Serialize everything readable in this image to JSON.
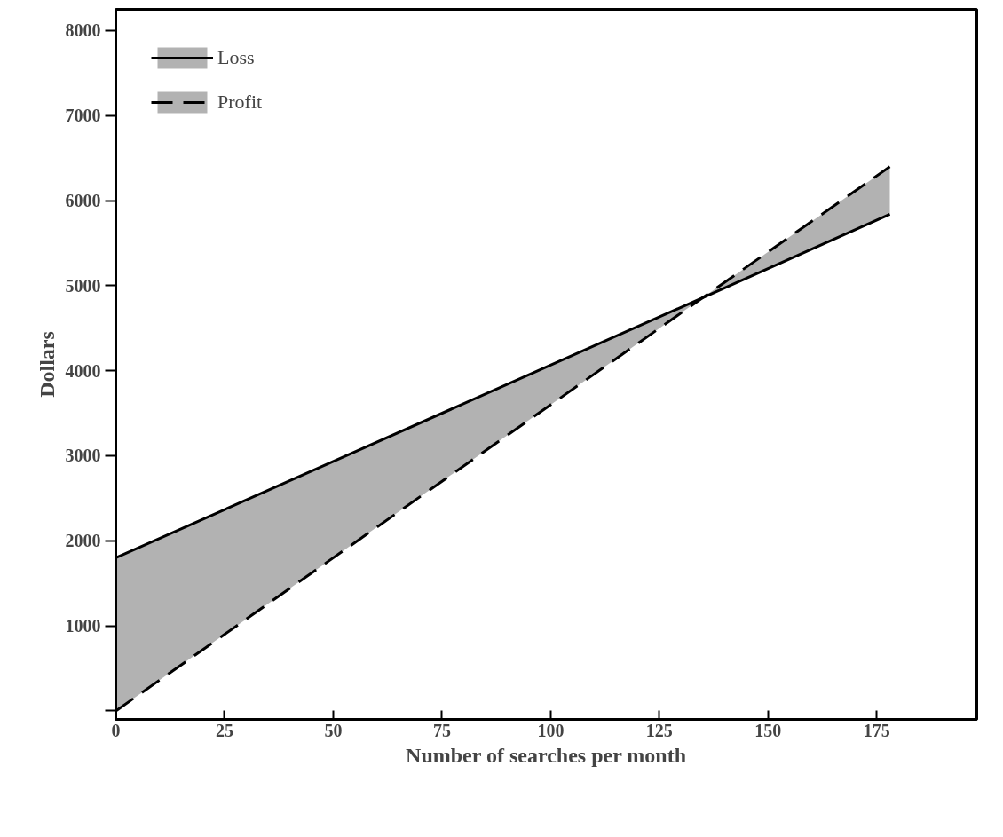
{
  "chart_data": {
    "type": "line",
    "xlabel": "Number of searches per month",
    "ylabel": "Dollars",
    "xlim": [
      0,
      198
    ],
    "ylim": [
      -100,
      8250
    ],
    "xticks": [
      0,
      25,
      50,
      75,
      100,
      125,
      150,
      175
    ],
    "yticks": [
      {
        "value": 0,
        "label": null
      },
      1000,
      2000,
      3000,
      4000,
      5000,
      6000,
      7000,
      8000
    ],
    "grid": false,
    "legend": "top left",
    "marker": "none",
    "series": [
      {
        "name": "Loss",
        "color": "#000000",
        "line_style": "solid",
        "x": [
          0,
          135,
          178
        ],
        "values": [
          1800,
          4860,
          5840
        ],
        "lower": [
          0,
          4860,
          null
        ],
        "upper": [
          1800,
          4860,
          null
        ]
      },
      {
        "name": "Profit",
        "color": "#000000",
        "line_style": "dashed",
        "x": [
          0,
          135,
          178
        ],
        "values": [
          0,
          4860,
          6400
        ],
        "lower": [
          null,
          4860,
          5840
        ],
        "upper": [
          null,
          4860,
          6400
        ]
      }
    ]
  }
}
